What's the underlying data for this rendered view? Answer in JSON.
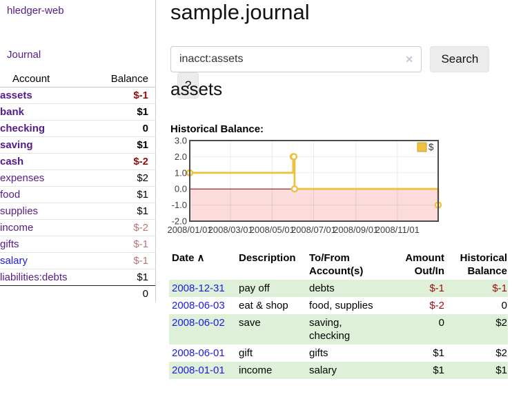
{
  "app": {
    "brand": "hledger-web",
    "nav": {
      "journal": "Journal"
    }
  },
  "sidebar": {
    "columns": {
      "account": "Account",
      "balance": "Balance"
    },
    "accounts": [
      {
        "name": "assets",
        "depth": 0,
        "selected": true,
        "balance": "$-1",
        "balance_style": "negative-strong"
      },
      {
        "name": "bank",
        "depth": 1,
        "selected": true,
        "balance": "$1",
        "balance_style": "normal"
      },
      {
        "name": "checking",
        "depth": 2,
        "selected": true,
        "balance": "0",
        "balance_style": "normal"
      },
      {
        "name": "saving",
        "depth": 2,
        "selected": true,
        "balance": "$1",
        "balance_style": "normal"
      },
      {
        "name": "cash",
        "depth": 1,
        "selected": true,
        "balance": "$-2",
        "balance_style": "negative-strong"
      },
      {
        "name": "expenses",
        "depth": 0,
        "selected": false,
        "balance": "$2",
        "balance_style": "normal"
      },
      {
        "name": "food",
        "depth": 1,
        "selected": false,
        "balance": "$1",
        "balance_style": "normal"
      },
      {
        "name": "supplies",
        "depth": 1,
        "selected": false,
        "balance": "$1",
        "balance_style": "normal"
      },
      {
        "name": "income",
        "depth": 0,
        "selected": false,
        "balance": "$-2",
        "balance_style": "negative-muted"
      },
      {
        "name": "gifts",
        "depth": 1,
        "selected": false,
        "balance": "$-1",
        "balance_style": "negative-muted"
      },
      {
        "name": "salary",
        "depth": 1,
        "selected": false,
        "balance": "$-1",
        "balance_style": "negative-muted",
        "link_color": "blue"
      },
      {
        "name": "liabilities:debts",
        "depth": 0,
        "selected": false,
        "balance": "$1",
        "balance_style": "normal"
      }
    ],
    "total": "0"
  },
  "header": {
    "title": "sample.journal"
  },
  "search": {
    "value": "inacct:assets",
    "clear_icon": "✕",
    "submit_label": "Search",
    "help_label": "?"
  },
  "account_page": {
    "title": "assets",
    "chart_label": "Historical Balance:"
  },
  "chart_data": {
    "type": "line",
    "style": "step",
    "series": [
      {
        "name": "$",
        "color": "#edc240",
        "points": [
          [
            "2008-01-01",
            1
          ],
          [
            "2008-06-01",
            2
          ],
          [
            "2008-06-02",
            2
          ],
          [
            "2008-06-03",
            0
          ],
          [
            "2008-12-31",
            -1
          ]
        ]
      }
    ],
    "x_min": "2008-01-01",
    "x_max": "2008-12-31",
    "x_tick_dates": [
      "2008-01-01",
      "2008-03-01",
      "2008-05-01",
      "2008-07-01",
      "2008-09-01",
      "2008-11-01"
    ],
    "x_tick_labels": [
      "2008/01/01",
      "2008/03/01",
      "2008/05/01",
      "2008/07/01",
      "2008/09/01",
      "2008/11/01"
    ],
    "y_ticks": [
      3.0,
      2.0,
      1.0,
      0.0,
      -1.0,
      -2.0
    ],
    "ylim": [
      -2,
      3
    ],
    "legend": {
      "label": "$",
      "position": "top-right"
    },
    "negative_region_color": "#fbdbdb",
    "zero_line_color": "#8b0000",
    "grid": true
  },
  "register": {
    "columns": [
      {
        "label": "Date",
        "sorted": true,
        "align": "left"
      },
      {
        "label": "Description",
        "align": "left"
      },
      {
        "label": "To/From Account(s)",
        "align": "left"
      },
      {
        "label": "Amount Out/In",
        "align": "right"
      },
      {
        "label": "Historical Balance",
        "align": "right"
      }
    ],
    "sort_icon": "∧",
    "rows": [
      {
        "date": "2008-12-31",
        "description": "pay off",
        "accounts": "debts",
        "amount": "$-1",
        "amount_negative": true,
        "balance": "$-1",
        "balance_negative": true
      },
      {
        "date": "2008-06-03",
        "description": "eat & shop",
        "accounts": "food, supplies",
        "amount": "$-2",
        "amount_negative": true,
        "balance": "0",
        "balance_negative": false
      },
      {
        "date": "2008-06-02",
        "description": "save",
        "accounts": "saving, checking",
        "amount": "0",
        "amount_negative": false,
        "balance": "$2",
        "balance_negative": false
      },
      {
        "date": "2008-06-01",
        "description": "gift",
        "accounts": "gifts",
        "amount": "$1",
        "amount_negative": false,
        "balance": "$2",
        "balance_negative": false
      },
      {
        "date": "2008-01-01",
        "description": "income",
        "accounts": "salary",
        "amount": "$1",
        "amount_negative": false,
        "balance": "$1",
        "balance_negative": false
      }
    ]
  },
  "colors": {
    "link_purple": "#551a8b",
    "link_blue": "#1a1ae8",
    "negative_strong": "#9c0b0b",
    "negative_muted": "#b87575",
    "row_green": "#dff0d8",
    "chart_line": "#edc240",
    "chart_negative_fill": "#fbdbdb",
    "chart_zero_line": "#8b0000"
  }
}
